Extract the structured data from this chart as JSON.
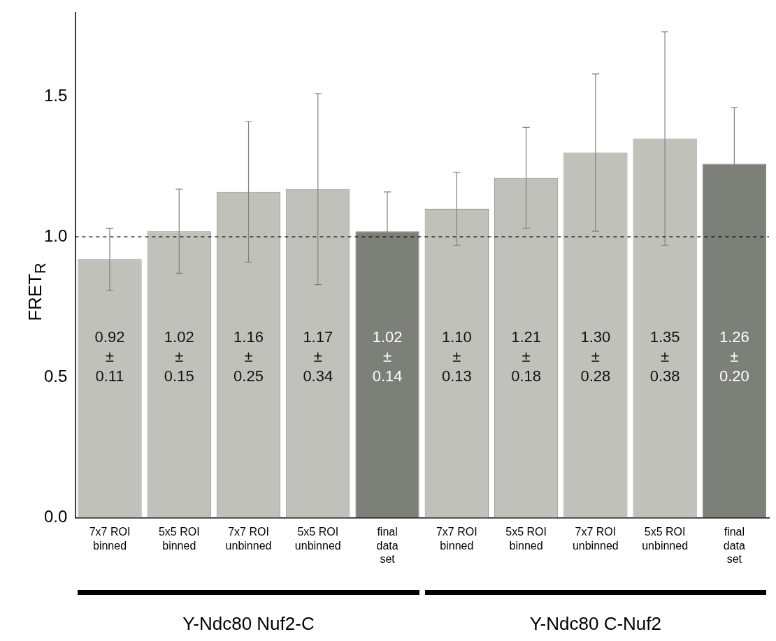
{
  "chart_data": {
    "type": "bar",
    "ylabel": "FRET$_{R}$",
    "categories": [
      "7x7 ROI\nbinned",
      "5x5 ROI\nbinned",
      "7x7 ROI\nunbinned",
      "5x5 ROI\nunbinned",
      "final\ndata\nset",
      "7x7 ROI\nbinned",
      "5x5 ROI\nbinned",
      "7x7 ROI\nunbinned",
      "5x5 ROI\nunbinned",
      "final\ndata\nset"
    ],
    "values": [
      0.92,
      1.02,
      1.16,
      1.17,
      1.02,
      1.1,
      1.21,
      1.3,
      1.35,
      1.26
    ],
    "errors": [
      0.11,
      0.15,
      0.25,
      0.34,
      0.14,
      0.13,
      0.18,
      0.28,
      0.38,
      0.2
    ],
    "value_labels": [
      "0.92 ± 0.11",
      "1.02 ± 0.15",
      "1.16 ± 0.25",
      "1.17 ± 0.34",
      "1.02 ± 0.14",
      "1.10 ± 0.13",
      "1.21 ± 0.18",
      "1.30 ± 0.28",
      "1.35 ± 0.38",
      "1.26 ± 0.20"
    ],
    "colors": [
      "#c0c1bb",
      "#c0c1bb",
      "#c0c1bb",
      "#c0c1bb",
      "#7d7f79",
      "#c0c1bb",
      "#c0c1bb",
      "#c0c1bb",
      "#c0c1bb",
      "#7d7f79"
    ],
    "ylim": [
      0,
      1.8
    ],
    "yticks": [
      {
        "value": 0,
        "label": "0.0"
      },
      {
        "value": 0.5,
        "label": "0.5"
      },
      {
        "value": 1,
        "label": "1.0"
      },
      {
        "value": 1.5,
        "label": "1.5"
      }
    ],
    "ref_lines": [
      {
        "axis": "y",
        "value": 1,
        "line_style": "dashed",
        "color": "#000000"
      }
    ],
    "annotations": [
      "Y-Ndc80 Nuf2-C",
      "Y-Ndc80 C-Nuf2"
    ],
    "grid": false,
    "legend": false
  }
}
